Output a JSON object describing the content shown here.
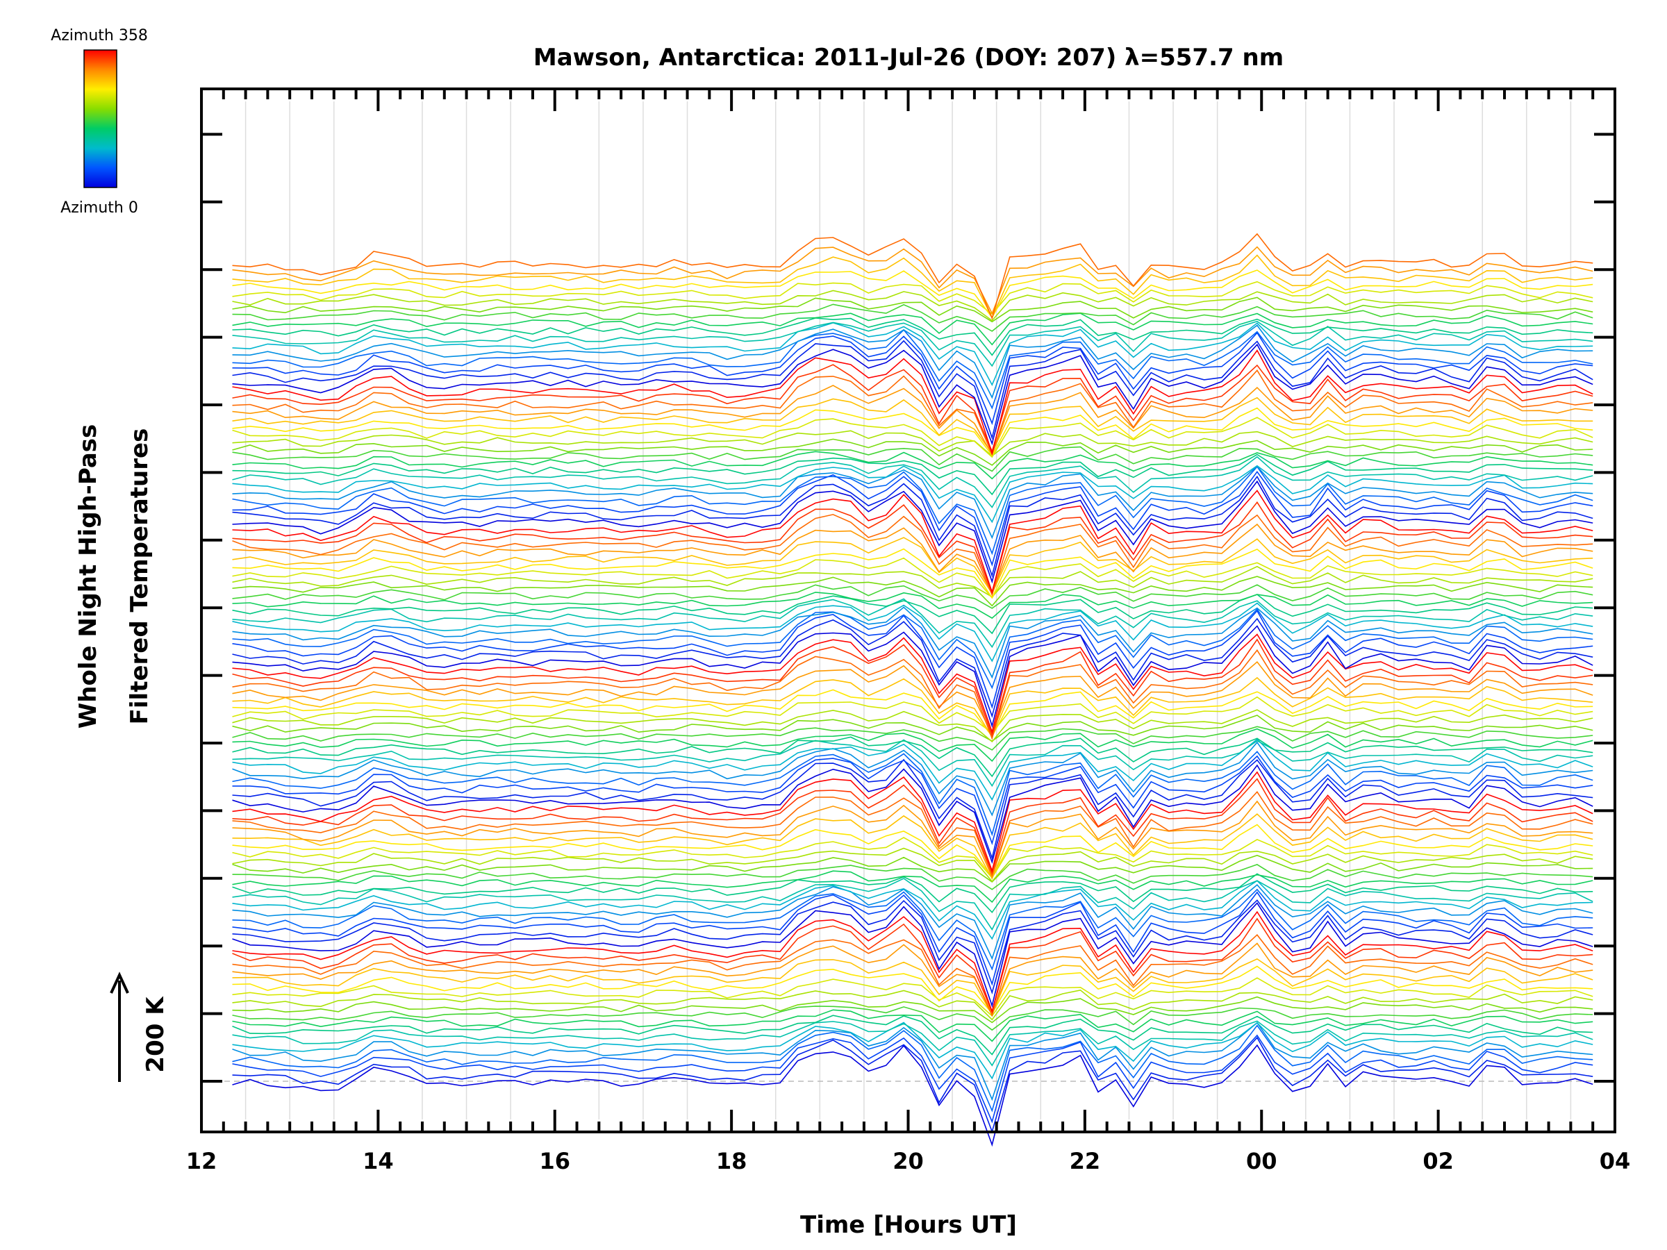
{
  "chart_data": {
    "type": "line",
    "title": "Mawson, Antarctica: 2011-Jul-26 (DOY: 207) λ=557.7 nm",
    "xlabel": "Time [Hours UT]",
    "ylabel_line1": "Whole Night High-Pass",
    "ylabel_line2": "Filtered Temperatures",
    "x_ticks": [
      "12",
      "14",
      "16",
      "18",
      "20",
      "22",
      "00",
      "02",
      "04"
    ],
    "x_tick_hours": [
      12,
      14,
      16,
      18,
      20,
      22,
      24,
      26,
      28
    ],
    "xlim": [
      12,
      28
    ],
    "scale_bar_label": "200 K",
    "colorbar": {
      "top_label": "Azimuth 358",
      "bottom_label": "Azimuth 0",
      "colors": [
        "#ff0000",
        "#ff8800",
        "#ffee00",
        "#88dd00",
        "#00cc66",
        "#00bbcc",
        "#0055ff",
        "#0000dd"
      ]
    },
    "grid": true,
    "num_traces": 112,
    "traces_per_azimuth_cycle": 19,
    "trace_start_hour": 12.35,
    "trace_end_hour": 27.8,
    "common_pattern_hours": [
      12.4,
      13.0,
      13.45,
      13.7,
      14.0,
      14.6,
      15.2,
      16.0,
      17.0,
      17.4,
      18.0,
      18.6,
      18.8,
      19.1,
      19.4,
      19.6,
      20.0,
      20.2,
      20.4,
      20.6,
      20.75,
      20.9,
      21.1,
      21.5,
      22.0,
      22.2,
      22.4,
      22.55,
      22.7,
      22.85,
      23.0,
      23.2,
      23.6,
      24.0,
      24.2,
      24.5,
      24.7,
      24.9,
      25.2,
      25.6,
      26.0,
      26.4,
      26.6,
      27.0,
      27.5,
      27.8
    ],
    "common_pattern_values": [
      0,
      -8,
      -18,
      -4,
      25,
      -8,
      -2,
      0,
      -5,
      5,
      -10,
      0,
      40,
      55,
      40,
      10,
      60,
      10,
      -60,
      15,
      -20,
      -140,
      10,
      20,
      40,
      -30,
      15,
      -40,
      30,
      -45,
      10,
      -10,
      0,
      70,
      -5,
      -25,
      40,
      -10,
      15,
      0,
      5,
      -10,
      35,
      -10,
      5,
      -5
    ],
    "y_units": "K"
  }
}
